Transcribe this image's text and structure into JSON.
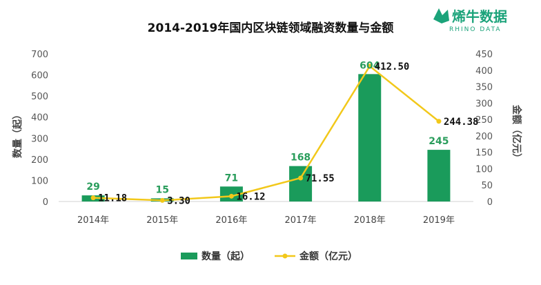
{
  "chart_data": {
    "type": "bar",
    "title": "2014-2019年国内区块链领域融资数量与金额",
    "categories": [
      "2014年",
      "2015年",
      "2016年",
      "2017年",
      "2018年",
      "2019年"
    ],
    "series": [
      {
        "name": "数量（起）",
        "type": "bar",
        "axis": "left",
        "values": [
          29,
          15,
          71,
          168,
          604,
          245
        ],
        "labels": [
          "29",
          "15",
          "71",
          "168",
          "604",
          "245"
        ]
      },
      {
        "name": "金额（亿元）",
        "type": "line",
        "axis": "right",
        "values": [
          11.18,
          3.3,
          16.12,
          71.55,
          412.5,
          244.38
        ],
        "labels": [
          "11.18",
          "3.30",
          "16.12",
          "71.55",
          "412.50",
          "244.38"
        ]
      }
    ],
    "ylabel": "数量（起）",
    "y2label": "金额（亿元）",
    "ylim": [
      0,
      700
    ],
    "y2lim": [
      0,
      450
    ],
    "yticks": [
      "0",
      "100",
      "200",
      "300",
      "400",
      "500",
      "600",
      "700"
    ],
    "y2ticks": [
      "0",
      "50",
      "100",
      "150",
      "200",
      "250",
      "300",
      "350",
      "400",
      "450"
    ],
    "grid": false,
    "legend": "bottom"
  },
  "logo": {
    "cn": "烯牛数据",
    "en": "RHINO DATA"
  },
  "colors": {
    "bar": "#1a9b5b",
    "line": "#f2c81a",
    "bar_label": "#2a9d5c",
    "logo": "#1ba37a"
  }
}
